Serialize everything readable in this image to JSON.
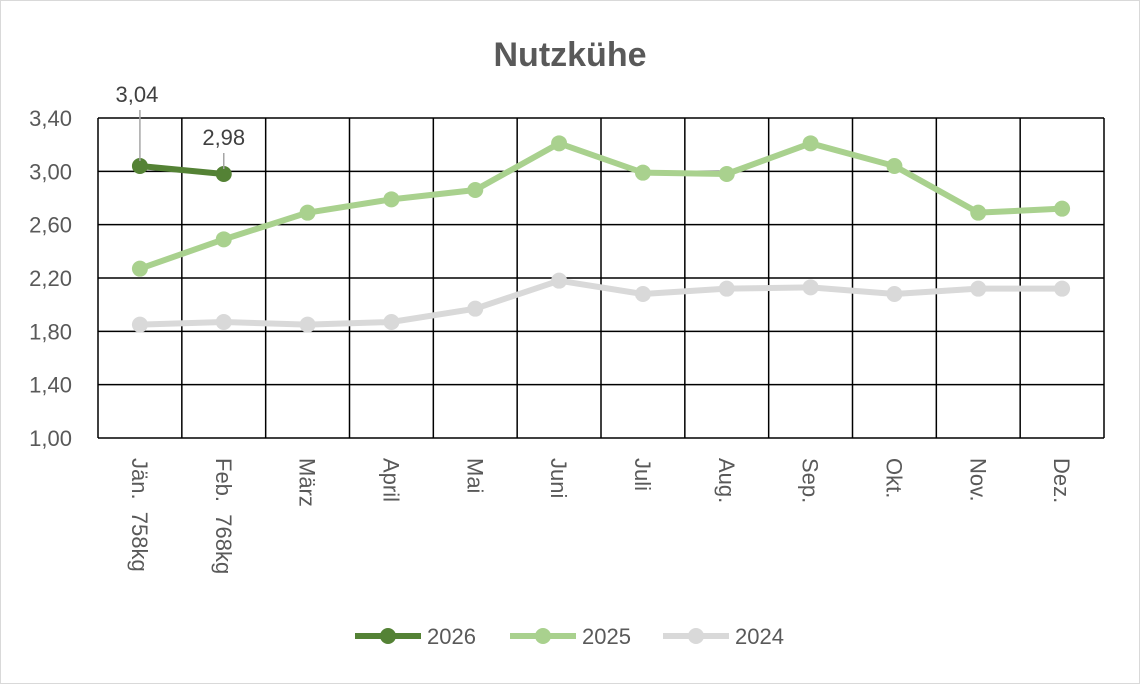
{
  "chart_data": {
    "type": "line",
    "title": "Nutzkühe",
    "categories": [
      "Jän.  758kg",
      "Feb.  768kg",
      "März",
      "April",
      "Mai",
      "Juni",
      "Juli",
      "Aug.",
      "Sep.",
      "Okt.",
      "Nov.",
      "Dez."
    ],
    "ylim": [
      1.0,
      3.4
    ],
    "yticks": [
      "1,00",
      "1,40",
      "1,80",
      "2,20",
      "2,60",
      "3,00",
      "3,40"
    ],
    "grid": true,
    "legend_position": "bottom",
    "series": [
      {
        "name": "2026",
        "color": "#548235",
        "values": [
          3.04,
          2.98,
          null,
          null,
          null,
          null,
          null,
          null,
          null,
          null,
          null,
          null
        ],
        "data_labels": [
          "3,04",
          "2,98"
        ]
      },
      {
        "name": "2025",
        "color": "#A9D18E",
        "values": [
          2.27,
          2.49,
          2.69,
          2.79,
          2.86,
          3.21,
          2.99,
          2.98,
          3.21,
          3.04,
          2.69,
          2.72
        ]
      },
      {
        "name": "2024",
        "color": "#D9D9D9",
        "values": [
          1.85,
          1.87,
          1.85,
          1.87,
          1.97,
          2.18,
          2.08,
          2.12,
          2.13,
          2.08,
          2.12,
          2.12
        ]
      }
    ]
  }
}
